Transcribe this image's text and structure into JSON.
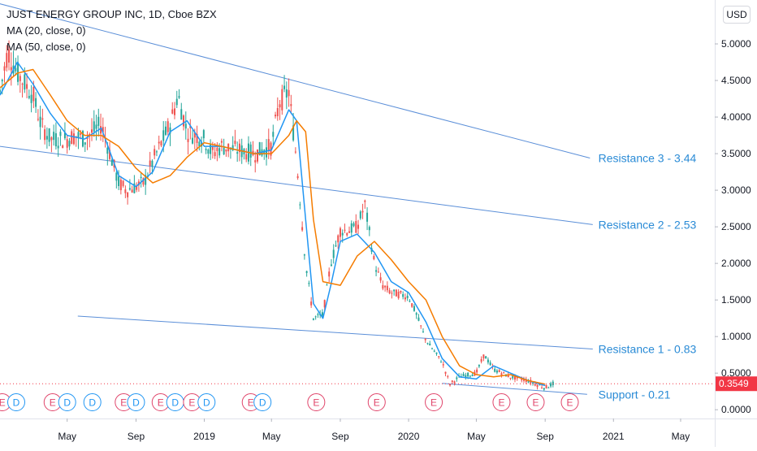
{
  "header": {
    "title": "JUST ENERGY GROUP INC, 1D, Cboe BZX",
    "indicators": [
      "MA (20, close, 0)",
      "MA (50, close, 0)"
    ],
    "currency_button": "USD"
  },
  "colors": {
    "price_line": "#2962ff",
    "ma20": "#2196f3",
    "ma50": "#f57c00",
    "trendline": "#5b8fd8",
    "annotation": "#2a8bd6",
    "price_label_bg": "#f23645",
    "event_earnings": "#e0446a",
    "event_dividend": "#2196f3",
    "candle_up": "#26a69a",
    "candle_down": "#ef5350"
  },
  "chart_data": {
    "type": "line",
    "y_axis": {
      "ticks": [
        "5.0000",
        "4.5000",
        "4.0000",
        "3.5000",
        "3.0000",
        "2.5000",
        "2.0000",
        "1.5000",
        "1.0000",
        "0.5000",
        "0.0000"
      ],
      "tick_values": [
        5.0,
        4.5,
        4.0,
        3.5,
        3.0,
        2.5,
        2.0,
        1.5,
        1.0,
        0.5,
        0.0
      ],
      "range": [
        -0.12,
        5.6
      ]
    },
    "x_axis": {
      "labels": [
        "May",
        "Sep",
        "2019",
        "May",
        "Sep",
        "2020",
        "May",
        "Sep",
        "2021",
        "May"
      ],
      "label_dates": [
        "2018-05",
        "2018-09",
        "2019-01",
        "2019-05",
        "2019-09",
        "2020-01",
        "2020-05",
        "2020-09",
        "2021-01",
        "2021-05"
      ],
      "range": [
        "2018-01",
        "2021-07"
      ]
    },
    "last_price": {
      "label": "0.3549",
      "value": 0.3549
    },
    "price_series": {
      "name": "",
      "x": [
        "2018-01",
        "2018-01-15",
        "2018-02",
        "2018-03",
        "2018-03-15",
        "2018-04",
        "2018-05",
        "2018-05-15",
        "2018-06",
        "2018-07",
        "2018-08",
        "2018-08-15",
        "2018-09",
        "2018-09-15",
        "2018-10",
        "2018-11",
        "2018-11-15",
        "2018-12",
        "2019-01",
        "2019-01-15",
        "2019-02",
        "2019-03",
        "2019-04",
        "2019-05",
        "2019-05-15",
        "2019-06",
        "2019-06-15",
        "2019-07",
        "2019-07-15",
        "2019-08",
        "2019-08-15",
        "2019-09",
        "2019-09-15",
        "2019-10",
        "2019-10-15",
        "2019-11",
        "2019-11-15",
        "2019-12",
        "2020-01",
        "2020-01-15",
        "2020-02",
        "2020-03",
        "2020-03-15",
        "2020-04",
        "2020-05",
        "2020-05-15",
        "2020-06",
        "2020-07",
        "2020-08",
        "2020-08-15",
        "2020-09",
        "2020-09-15"
      ],
      "y": [
        4.35,
        4.9,
        4.6,
        4.3,
        3.9,
        3.7,
        3.7,
        3.75,
        3.7,
        3.9,
        3.1,
        3.0,
        3.05,
        3.1,
        3.4,
        3.9,
        4.3,
        3.8,
        3.7,
        3.5,
        3.6,
        3.55,
        3.5,
        3.6,
        4.2,
        4.35,
        3.4,
        2.0,
        1.25,
        1.3,
        2.0,
        2.45,
        2.45,
        2.5,
        2.8,
        2.0,
        1.7,
        1.6,
        1.55,
        1.3,
        0.95,
        0.65,
        0.35,
        0.45,
        0.5,
        0.75,
        0.55,
        0.45,
        0.4,
        0.35,
        0.3,
        0.3549
      ]
    },
    "series": [
      {
        "name": "MA (20, close, 0)",
        "x": [
          "2018-01",
          "2018-02",
          "2018-03",
          "2018-04",
          "2018-05",
          "2018-06",
          "2018-07",
          "2018-08",
          "2018-09",
          "2018-10",
          "2018-11",
          "2018-12",
          "2019-01",
          "2019-02",
          "2019-03",
          "2019-04",
          "2019-05",
          "2019-06",
          "2019-06-15",
          "2019-07",
          "2019-07-15",
          "2019-08",
          "2019-08-15",
          "2019-09",
          "2019-10",
          "2019-11",
          "2019-12",
          "2020-01",
          "2020-02",
          "2020-03",
          "2020-04",
          "2020-05",
          "2020-06",
          "2020-07",
          "2020-08",
          "2020-09"
        ],
        "y": [
          4.3,
          4.75,
          4.45,
          4.05,
          3.75,
          3.7,
          3.85,
          3.2,
          3.05,
          3.25,
          3.8,
          3.95,
          3.6,
          3.6,
          3.55,
          3.5,
          3.55,
          4.1,
          3.95,
          2.6,
          1.45,
          1.25,
          1.7,
          2.3,
          2.4,
          2.15,
          1.75,
          1.6,
          1.2,
          0.7,
          0.45,
          0.42,
          0.6,
          0.5,
          0.4,
          0.33
        ]
      },
      {
        "name": "MA (50, close, 0)",
        "x": [
          "2018-01",
          "2018-02",
          "2018-03",
          "2018-04",
          "2018-05",
          "2018-06",
          "2018-07",
          "2018-08",
          "2018-09",
          "2018-10",
          "2018-11",
          "2018-12",
          "2019-01",
          "2019-02",
          "2019-03",
          "2019-04",
          "2019-05",
          "2019-06",
          "2019-06-15",
          "2019-07",
          "2019-07-15",
          "2019-08",
          "2019-09",
          "2019-10",
          "2019-11",
          "2019-12",
          "2020-01",
          "2020-02",
          "2020-03",
          "2020-04",
          "2020-05",
          "2020-06",
          "2020-07",
          "2020-08",
          "2020-09"
        ],
        "y": [
          4.4,
          4.6,
          4.65,
          4.3,
          3.95,
          3.75,
          3.75,
          3.6,
          3.3,
          3.1,
          3.2,
          3.45,
          3.65,
          3.6,
          3.55,
          3.5,
          3.5,
          3.75,
          3.95,
          3.8,
          2.6,
          1.75,
          1.7,
          2.1,
          2.3,
          2.05,
          1.75,
          1.5,
          1.0,
          0.6,
          0.48,
          0.45,
          0.48,
          0.4,
          0.35
        ]
      }
    ],
    "trendlines": [
      {
        "x": [
          "2017-12-31",
          "2020-11-20"
        ],
        "y": [
          5.55,
          3.44
        ]
      },
      {
        "x": [
          "2017-12-31",
          "2020-11-25"
        ],
        "y": [
          3.6,
          2.53
        ]
      },
      {
        "x": [
          "2018-05-20",
          "2020-11-25"
        ],
        "y": [
          1.28,
          0.83
        ]
      },
      {
        "x": [
          "2020-03-01",
          "2020-11-15"
        ],
        "y": [
          0.36,
          0.21
        ]
      }
    ],
    "annotations": [
      {
        "text": "Resistance 3 - 3.44",
        "x": "2020-12-05",
        "y": 3.44
      },
      {
        "text": "Resistance 2 - 2.53",
        "x": "2020-12-05",
        "y": 2.53
      },
      {
        "text": "Resistance 1 - 0.83",
        "x": "2020-12-05",
        "y": 0.83
      },
      {
        "text": "Support - 0.21",
        "x": "2020-12-05",
        "y": 0.21
      }
    ],
    "events": [
      {
        "type": "E",
        "x": "2018-01-05"
      },
      {
        "type": "D",
        "x": "2018-01-30"
      },
      {
        "type": "E",
        "x": "2018-04-05"
      },
      {
        "type": "D",
        "x": "2018-05-01"
      },
      {
        "type": "D",
        "x": "2018-06-15"
      },
      {
        "type": "E",
        "x": "2018-08-10"
      },
      {
        "type": "D",
        "x": "2018-09-01"
      },
      {
        "type": "E",
        "x": "2018-10-15"
      },
      {
        "type": "D",
        "x": "2018-11-10"
      },
      {
        "type": "E",
        "x": "2018-12-10"
      },
      {
        "type": "D",
        "x": "2019-01-05"
      },
      {
        "type": "E",
        "x": "2019-03-25"
      },
      {
        "type": "D",
        "x": "2019-04-15"
      },
      {
        "type": "E",
        "x": "2019-07-20"
      },
      {
        "type": "E",
        "x": "2019-11-05"
      },
      {
        "type": "E",
        "x": "2020-02-15"
      },
      {
        "type": "E",
        "x": "2020-06-15"
      },
      {
        "type": "E",
        "x": "2020-08-15"
      },
      {
        "type": "E",
        "x": "2020-10-15"
      }
    ],
    "grid": false,
    "legend": "top-left"
  }
}
